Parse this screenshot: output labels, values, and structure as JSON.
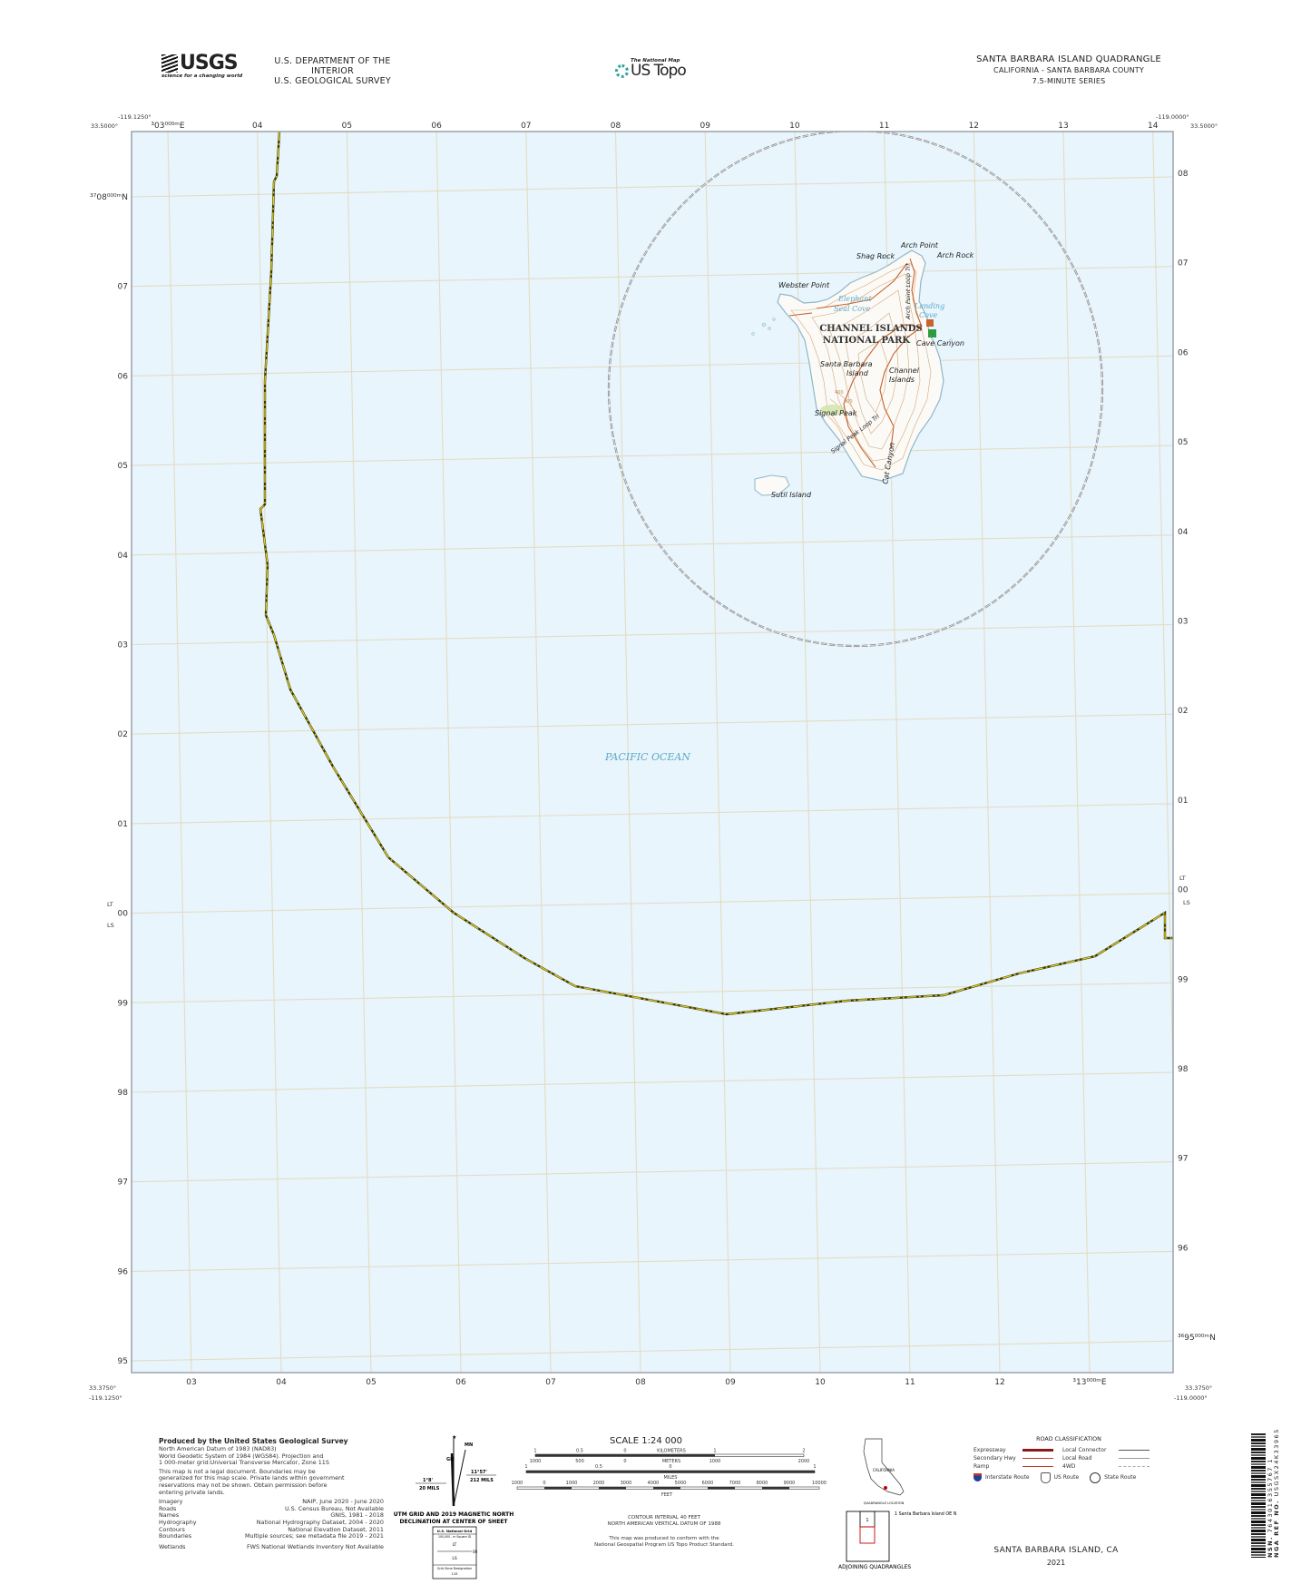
{
  "header": {
    "usgs_logo_text": "USGS",
    "usgs_tagline": "science for a changing world",
    "department": "U.S. DEPARTMENT OF THE INTERIOR",
    "survey": "U.S. GEOLOGICAL SURVEY",
    "national_map_label": "The National Map",
    "us_topo_label": "US Topo",
    "quad_title": "SANTA BARBARA ISLAND QUADRANGLE",
    "quad_state_county": "CALIFORNIA - SANTA BARBARA COUNTY",
    "quad_series": "7.5-MINUTE SERIES"
  },
  "corners": {
    "top_left_lon": "-119.1250°",
    "top_left_lat": "33.5000°",
    "top_right_lon": "-119.0000°",
    "top_right_lat": "33.5000°",
    "bottom_left_lat": "33.3750°",
    "bottom_left_lon": "-119.1250°",
    "bottom_right_lat": "33.3750°",
    "bottom_right_lon": "-119.0000°"
  },
  "grid": {
    "top_labels": [
      "³03⁰⁰⁰ᵐE",
      "04",
      "05",
      "06",
      "07",
      "08",
      "09",
      "10",
      "11",
      "12",
      "13",
      "14"
    ],
    "bottom_labels": [
      "03",
      "04",
      "05",
      "06",
      "07",
      "08",
      "09",
      "10",
      "11",
      "12",
      "³13⁰⁰⁰ᵐE"
    ],
    "left_labels": [
      "³⁷08⁰⁰⁰ᵐN",
      "07",
      "06",
      "05",
      "04",
      "03",
      "02",
      "01",
      "00",
      "99",
      "98",
      "97",
      "96",
      "95"
    ],
    "right_labels": [
      "08",
      "07",
      "06",
      "05",
      "04",
      "03",
      "02",
      "01",
      "00",
      "99",
      "98",
      "97",
      "96",
      "³⁶95⁰⁰⁰ᵐN"
    ],
    "zone_upper": "LT",
    "zone_lower": "LS"
  },
  "map_labels": {
    "arch_point": "Arch Point",
    "shag_rock": "Shag Rock",
    "arch_rock": "Arch Rock",
    "webster_point": "Webster Point",
    "elephant_seal_cove_1": "Elephant",
    "elephant_seal_cove_2": "Seal Cove",
    "landing_cove_1": "Landing",
    "landing_cove_2": "Cove",
    "park_1": "CHANNEL ISLANDS",
    "park_2": "NATIONAL PARK",
    "cave_canyon": "Cave Canyon",
    "santa_barbara_island_1": "Santa Barbara",
    "santa_barbara_island_2": "Island",
    "channel_islands_1": "Channel",
    "channel_islands_2": "Islands",
    "signal_peak": "Signal Peak",
    "signal_peak_trail": "Signal Peak Loop Trl",
    "cat_canyon": "Cat Canyon",
    "arch_point_trail": "Arch Point Loop Trl",
    "sutil_island": "Sutil Island",
    "pacific_ocean": "PACIFIC OCEAN",
    "contour_400": "400",
    "contour_600": "600"
  },
  "colors": {
    "water": "#e8f5fd",
    "land": "#fbfaf6",
    "grid": "#e3dcc2",
    "contour": "#d3a77a",
    "trail": "#c8632e",
    "boundary_dash": "#c8b100",
    "park_boundary": "#8a8a8a",
    "water_label": "#5fa8c8"
  },
  "credits": {
    "produced_by": "Produced by the United States Geological Survey",
    "datum_lines": [
      "North American Datum of 1983 (NAD83)",
      "World Geodetic System of 1984 (WGS84).  Projection and",
      "1 000-meter grid:Universal Transverse Mercator, Zone 11S"
    ],
    "disclaimer_lines": [
      "This map is not a legal document. Boundaries may be",
      "generalized for this map scale. Private lands within government",
      "reservations may not be shown. Obtain permission before",
      "entering private lands."
    ],
    "sources": [
      {
        "label": "Imagery",
        "value": "NAIP, June 2020 - June 2020"
      },
      {
        "label": "Roads",
        "value": "U.S. Census Bureau, Not Available"
      },
      {
        "label": "Names",
        "value": "GNIS, 1981 - 2018"
      },
      {
        "label": "Hydrography",
        "value": "National Hydrography Dataset, 2004 - 2020"
      },
      {
        "label": "Contours",
        "value": "National Elevation Dataset, 2011"
      },
      {
        "label": "Boundaries",
        "value": "Multiple sources; see metadata file 2019 - 2021"
      }
    ],
    "wetlands": {
      "label": "Wetlands",
      "value": "FWS National Wetlands Inventory Not Available"
    }
  },
  "declination": {
    "gn_label": "GN",
    "mn_label": "MN",
    "gn_angle": "1°8'",
    "gn_mils": "20 MILS",
    "mn_angle": "11°57'",
    "mn_mils": "212 MILS",
    "caption_1": "UTM GRID AND 2019 MAGNETIC NORTH",
    "caption_2": "DECLINATION AT CENTER OF SHEET"
  },
  "national_grid": {
    "title": "U.S. National Grid",
    "subtitle": "100,000 - m Square ID",
    "upper": "LT",
    "lower": "LS",
    "line_value": "00",
    "zone_label": "Grid Zone Designation",
    "zone": "11S"
  },
  "scale": {
    "title": "SCALE 1:24 000",
    "km_ticks": [
      "1",
      "0.5",
      "0",
      "1",
      "2"
    ],
    "km_unit": "KILOMETERS",
    "m_ticks": [
      "1000",
      "500",
      "0",
      "1000",
      "2000"
    ],
    "m_unit": "METERS",
    "mi_ticks": [
      "1",
      "0.5",
      "0",
      "1"
    ],
    "mi_unit": "MILES",
    "ft_ticks": [
      "1000",
      "0",
      "1000",
      "2000",
      "3000",
      "4000",
      "5000",
      "6000",
      "7000",
      "8000",
      "9000",
      "10000"
    ],
    "ft_unit": "FEET",
    "contour_interval": "CONTOUR INTERVAL 40 FEET",
    "vertical_datum": "NORTH AMERICAN VERTICAL DATUM OF 1988",
    "conform_1": "This map was produced to conform with the",
    "conform_2": "National Geospatial Program US Topo Product Standard."
  },
  "location": {
    "state_label": "CALIFORNIA",
    "caption": "QUADRANGLE LOCATION",
    "adjoining_number": "1",
    "adjoining_list": "1 Santa Barbara Island OE N",
    "adjoining_caption": "ADJOINING QUADRANGLES"
  },
  "roads": {
    "title": "ROAD CLASSIFICATION",
    "left": [
      {
        "label": "Expressway",
        "color": "#8b1a1a"
      },
      {
        "label": "Secondary Hwy",
        "color": "#c0392b"
      },
      {
        "label": "Ramp",
        "color": "#c0392b"
      }
    ],
    "right": [
      {
        "label": "Local Connector",
        "color": "#555555"
      },
      {
        "label": "Local Road",
        "color": "#999999"
      },
      {
        "label": "4WD",
        "color": "#aaaaaa"
      }
    ],
    "routes": [
      "Interstate Route",
      "US Route",
      "State Route"
    ]
  },
  "footer": {
    "title": "SANTA BARBARA ISLAND, CA",
    "year": "2021",
    "barcode_nsn": "NSN.",
    "barcode_nsn_value": "7643016355767 1",
    "barcode_ref": "NGA REF NO.",
    "barcode_ref_value": "USGSX24K33965"
  }
}
